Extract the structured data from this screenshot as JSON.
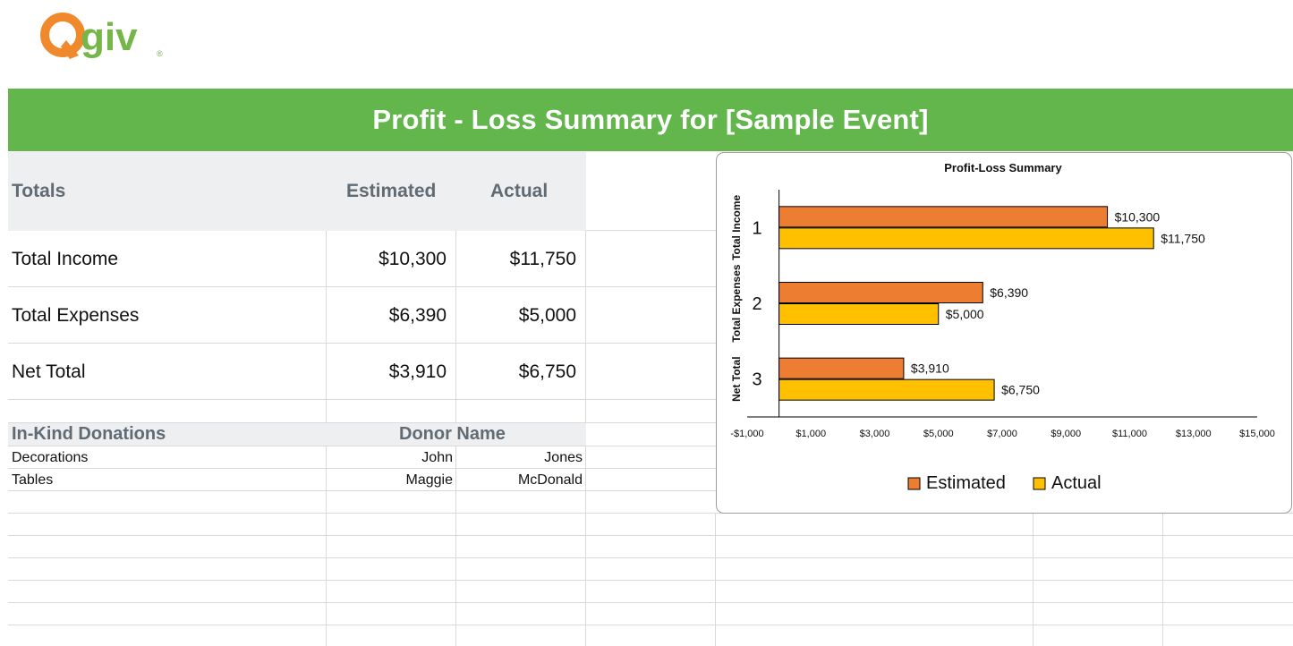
{
  "logo": {
    "text": "Qgiv",
    "registered": "®"
  },
  "banner": {
    "title": "Profit - Loss Summary for [Sample Event]"
  },
  "totals": {
    "headers": {
      "label": "Totals",
      "estimated": "Estimated",
      "actual": "Actual"
    },
    "rows": [
      {
        "label": "Total Income",
        "estimated": "$10,300",
        "actual": "$11,750"
      },
      {
        "label": "Total Expenses",
        "estimated": "$6,390",
        "actual": "$5,000"
      },
      {
        "label": "Net Total",
        "estimated": "$3,910",
        "actual": "$6,750"
      }
    ]
  },
  "inkind": {
    "headers": {
      "label": "In-Kind Donations",
      "donor": "Donor Name"
    },
    "rows": [
      {
        "item": "Decorations",
        "first": "John",
        "last": "Jones"
      },
      {
        "item": "Tables",
        "first": "Maggie",
        "last": "McDonald"
      }
    ]
  },
  "colors": {
    "brand_green": "#62b64c",
    "logo_orange": "#f0892c",
    "logo_green": "#74b648",
    "estimated": "#ed7d31",
    "actual": "#ffc000"
  },
  "chart_data": {
    "type": "bar",
    "orientation": "horizontal",
    "title": "Profit-Loss Summary",
    "categories": [
      "1",
      "2",
      "3"
    ],
    "category_labels": [
      "Total Income",
      "Total Expenses",
      "Net Total"
    ],
    "series": [
      {
        "name": "Estimated",
        "values": [
          10300,
          6390,
          3910
        ],
        "labels": [
          "$10,300",
          "$6,390",
          "$3,910"
        ],
        "color": "#ed7d31"
      },
      {
        "name": "Actual",
        "values": [
          11750,
          5000,
          6750
        ],
        "labels": [
          "$11,750",
          "$5,000",
          "$6,750"
        ],
        "color": "#ffc000"
      }
    ],
    "xlim": [
      -1000,
      15000
    ],
    "xticks": [
      "-$1,000",
      "$1,000",
      "$3,000",
      "$5,000",
      "$7,000",
      "$9,000",
      "$11,000",
      "$13,000",
      "$15,000"
    ],
    "xtick_values": [
      -1000,
      1000,
      3000,
      5000,
      7000,
      9000,
      11000,
      13000,
      15000
    ],
    "legend_position": "bottom",
    "grid": false
  }
}
